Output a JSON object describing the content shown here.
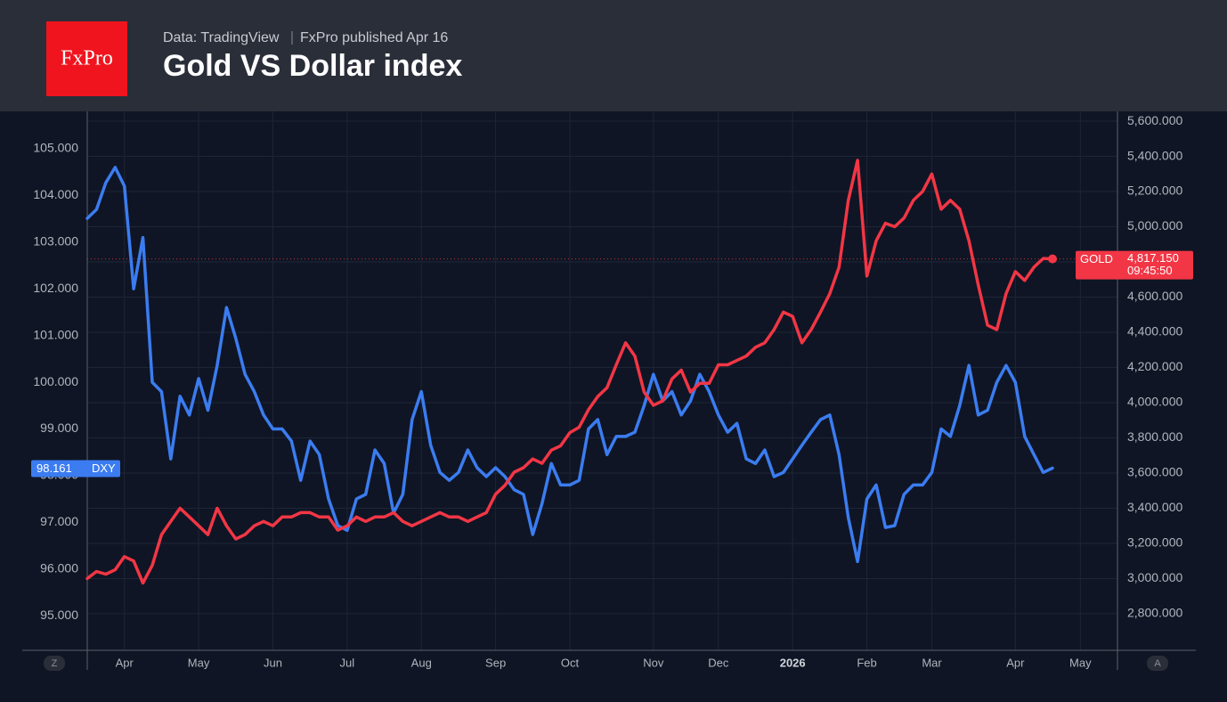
{
  "header": {
    "logo": "FxPro",
    "source": "Data: TradingView",
    "published": "FxPro published Apr 16"
  },
  "axis_buttons": [
    "Z",
    "A"
  ],
  "chart_data": {
    "type": "line",
    "title": "Gold VS Dollar index",
    "grid": true,
    "categories": [
      null,
      null,
      null,
      null,
      "Apr",
      null,
      null,
      null,
      null,
      null,
      null,
      null,
      "May",
      null,
      null,
      null,
      null,
      null,
      null,
      null,
      "Jun",
      null,
      null,
      null,
      null,
      null,
      null,
      null,
      "Jul",
      null,
      null,
      null,
      null,
      null,
      null,
      null,
      "Aug",
      null,
      null,
      null,
      null,
      null,
      null,
      null,
      "Sep",
      null,
      null,
      null,
      null,
      null,
      null,
      null,
      "Oct",
      null,
      null,
      null,
      null,
      null,
      null,
      null,
      null,
      "Nov",
      null,
      null,
      null,
      null,
      null,
      null,
      "Dec",
      null,
      null,
      null,
      null,
      null,
      null,
      null,
      "2026",
      null,
      null,
      null,
      null,
      null,
      null,
      null,
      "Feb",
      null,
      null,
      null,
      null,
      null,
      null,
      "Mar",
      null,
      null,
      null,
      null,
      null,
      null,
      null,
      null,
      "Apr",
      null,
      null,
      null,
      null,
      null,
      null,
      "May",
      null,
      null,
      null,
      null
    ],
    "ylim": [
      94.26,
      105.8
    ],
    "yticks": [
      {
        "value": 95,
        "label": "95.000"
      },
      {
        "value": 96,
        "label": "96.000"
      },
      {
        "value": 97,
        "label": "97.000"
      },
      {
        "value": 98,
        "label": "98.000"
      },
      {
        "value": 99,
        "label": "99.000"
      },
      {
        "value": 100,
        "label": "100.000"
      },
      {
        "value": 101,
        "label": "101.000"
      },
      {
        "value": 102,
        "label": "102.000"
      },
      {
        "value": 103,
        "label": "103.000"
      },
      {
        "value": 104,
        "label": "104.000"
      },
      {
        "value": 105,
        "label": "105.000"
      }
    ],
    "y2lim": [
      2592,
      5656
    ],
    "y2ticks": [
      {
        "value": 2800,
        "label": "2,800.000"
      },
      {
        "value": 3000,
        "label": "3,000.000"
      },
      {
        "value": 3200,
        "label": "3,200.000"
      },
      {
        "value": 3400,
        "label": "3,400.000"
      },
      {
        "value": 3600,
        "label": "3,600.000"
      },
      {
        "value": 3800,
        "label": "3,800.000"
      },
      {
        "value": 4000,
        "label": "4,000.000"
      },
      {
        "value": 4200,
        "label": "4,200.000"
      },
      {
        "value": 4400,
        "label": "4,400.000"
      },
      {
        "value": 4600,
        "label": "4,600.000"
      },
      {
        "value": 4800,
        "label": "4,800.000"
      },
      {
        "value": 5000,
        "label": "5,000.000"
      },
      {
        "value": 5200,
        "label": "5,200.000"
      },
      {
        "value": 5400,
        "label": "5,400.000"
      },
      {
        "value": 5600,
        "label": "5,600.000"
      }
    ],
    "series": [
      {
        "name": "DXY",
        "color": "#3b7cf0",
        "axis": "y",
        "last_value_label": "98.161",
        "values": [
          103.51,
          103.7,
          104.27,
          104.6,
          104.2,
          102.0,
          103.1,
          100.0,
          99.8,
          98.36,
          99.7,
          99.3,
          100.08,
          99.4,
          100.36,
          101.6,
          100.94,
          100.17,
          99.8,
          99.3,
          99.0,
          99.0,
          98.74,
          97.9,
          98.74,
          98.45,
          97.5,
          96.93,
          96.83,
          97.5,
          97.6,
          98.55,
          98.26,
          97.2,
          97.6,
          99.2,
          99.8,
          98.65,
          98.07,
          97.9,
          98.07,
          98.55,
          98.17,
          97.98,
          98.17,
          97.98,
          97.7,
          97.6,
          96.74,
          97.4,
          98.26,
          97.8,
          97.8,
          97.9,
          99.0,
          99.2,
          98.45,
          98.84,
          98.84,
          98.93,
          99.5,
          100.17,
          99.6,
          99.8,
          99.3,
          99.6,
          100.17,
          99.8,
          99.3,
          98.93,
          99.12,
          98.36,
          98.26,
          98.55,
          97.98,
          98.07,
          98.36,
          98.65,
          98.93,
          99.2,
          99.3,
          98.45,
          97.1,
          96.16,
          97.5,
          97.8,
          96.89,
          96.93,
          97.6,
          97.8,
          97.8,
          98.07,
          99.0,
          98.84,
          99.5,
          100.36,
          99.3,
          99.4,
          100.0,
          100.36,
          100.0,
          98.84,
          98.45,
          98.07,
          98.161,
          null,
          null,
          null,
          null,
          null,
          null,
          null
        ]
      },
      {
        "name": "GOLD",
        "color": "#f23645",
        "axis": "y2",
        "last_value_label": "4,817.150",
        "countdown": "09:45:50",
        "values": [
          3000,
          3040,
          3025,
          3050,
          3125,
          3100,
          2975,
          3075,
          3250,
          3325,
          3400,
          3350,
          3300,
          3250,
          3400,
          3300,
          3225,
          3250,
          3300,
          3325,
          3300,
          3350,
          3350,
          3375,
          3375,
          3350,
          3350,
          3275,
          3300,
          3350,
          3325,
          3350,
          3350,
          3375,
          3325,
          3300,
          3325,
          3350,
          3375,
          3350,
          3350,
          3325,
          3350,
          3375,
          3480,
          3530,
          3605,
          3630,
          3680,
          3655,
          3730,
          3755,
          3830,
          3860,
          3960,
          4035,
          4085,
          4215,
          4340,
          4265,
          4060,
          3985,
          4010,
          4135,
          4185,
          4060,
          4110,
          4110,
          4215,
          4215,
          4240,
          4265,
          4315,
          4340,
          4415,
          4515,
          4490,
          4340,
          4415,
          4515,
          4620,
          4770,
          5150,
          5378,
          4720,
          4920,
          5020,
          5000,
          5050,
          5150,
          5200,
          5300,
          5100,
          5150,
          5100,
          4920,
          4670,
          4440,
          4415,
          4620,
          4745,
          4695,
          4770,
          4820,
          4817.15,
          null,
          null,
          null,
          null,
          null,
          null,
          null
        ]
      }
    ]
  }
}
